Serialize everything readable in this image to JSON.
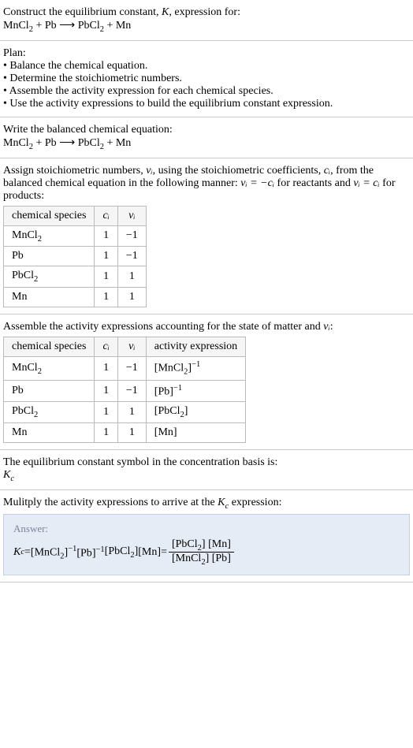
{
  "intro": {
    "line1_prefix": "Construct the equilibrium constant, ",
    "line1_K": "K",
    "line1_suffix": ", expression for:",
    "equation_parts": [
      "MnCl",
      "2",
      " + Pb  ⟶  PbCl",
      "2",
      " + Mn"
    ]
  },
  "plan": {
    "heading": "Plan:",
    "bullets": [
      "• Balance the chemical equation.",
      "• Determine the stoichiometric numbers.",
      "• Assemble the activity expression for each chemical species.",
      "• Use the activity expressions to build the equilibrium constant expression."
    ]
  },
  "balanced": {
    "heading": "Write the balanced chemical equation:",
    "equation_parts": [
      "MnCl",
      "2",
      " + Pb  ⟶  PbCl",
      "2",
      " + Mn"
    ]
  },
  "stoich": {
    "text_prefix": "Assign stoichiometric numbers, ",
    "nu_i": "νᵢ",
    "text_mid1": ", using the stoichiometric coefficients, ",
    "c_i": "cᵢ",
    "text_mid2": ", from the balanced chemical equation in the following manner: ",
    "relation1": "νᵢ = −cᵢ",
    "text_mid3": " for reactants and ",
    "relation2": "νᵢ = cᵢ",
    "text_end": " for products:",
    "table": {
      "headers": [
        "chemical species",
        "cᵢ",
        "νᵢ"
      ],
      "rows": [
        {
          "species": "MnCl",
          "sub": "2",
          "c": "1",
          "nu": "−1"
        },
        {
          "species": "Pb",
          "sub": "",
          "c": "1",
          "nu": "−1"
        },
        {
          "species": "PbCl",
          "sub": "2",
          "c": "1",
          "nu": "1"
        },
        {
          "species": "Mn",
          "sub": "",
          "c": "1",
          "nu": "1"
        }
      ]
    }
  },
  "activity": {
    "heading_prefix": "Assemble the activity expressions accounting for the state of matter and ",
    "heading_nu": "νᵢ",
    "heading_suffix": ":",
    "table": {
      "headers": [
        "chemical species",
        "cᵢ",
        "νᵢ",
        "activity expression"
      ],
      "rows": [
        {
          "species": "MnCl",
          "sub": "2",
          "c": "1",
          "nu": "−1",
          "act_pre": "[MnCl",
          "act_sub": "2",
          "act_post": "]",
          "act_exp": "−1"
        },
        {
          "species": "Pb",
          "sub": "",
          "c": "1",
          "nu": "−1",
          "act_pre": "[Pb",
          "act_sub": "",
          "act_post": "]",
          "act_exp": "−1"
        },
        {
          "species": "PbCl",
          "sub": "2",
          "c": "1",
          "nu": "1",
          "act_pre": "[PbCl",
          "act_sub": "2",
          "act_post": "]",
          "act_exp": ""
        },
        {
          "species": "Mn",
          "sub": "",
          "c": "1",
          "nu": "1",
          "act_pre": "[Mn",
          "act_sub": "",
          "act_post": "]",
          "act_exp": ""
        }
      ]
    }
  },
  "symbol": {
    "line1": "The equilibrium constant symbol in the concentration basis is:",
    "kc_K": "K",
    "kc_c": "c"
  },
  "multiply": {
    "prefix": "Mulitply the activity expressions to arrive at the ",
    "kc_K": "K",
    "kc_c": "c",
    "suffix": " expression:"
  },
  "answer": {
    "label": "Answer:",
    "kc_K": "K",
    "kc_c": "c",
    "eq": " = ",
    "terms": [
      {
        "pre": "[MnCl",
        "sub": "2",
        "post": "]",
        "exp": "−1"
      },
      {
        "pre": " [Pb",
        "sub": "",
        "post": "]",
        "exp": "−1"
      },
      {
        "pre": " [PbCl",
        "sub": "2",
        "post": "]",
        "exp": ""
      },
      {
        "pre": " [Mn",
        "sub": "",
        "post": "]",
        "exp": ""
      }
    ],
    "eq2": " = ",
    "frac": {
      "num": [
        {
          "pre": "[PbCl",
          "sub": "2",
          "post": "] "
        },
        {
          "pre": "[Mn",
          "sub": "",
          "post": "]"
        }
      ],
      "den": [
        {
          "pre": "[MnCl",
          "sub": "2",
          "post": "] "
        },
        {
          "pre": "[Pb",
          "sub": "",
          "post": "]"
        }
      ]
    }
  },
  "colors": {
    "border": "#cccccc",
    "table_border": "#bbbbbb",
    "th_bg": "#f5f5f5",
    "answer_bg": "#e6ecf5",
    "answer_border": "#c5d0e3",
    "answer_label": "#7a8599"
  }
}
